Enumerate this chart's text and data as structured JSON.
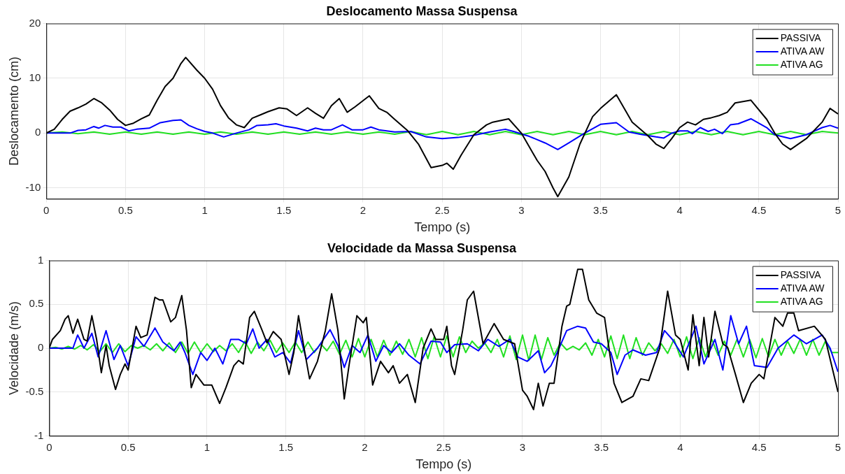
{
  "chart_data": [
    {
      "type": "line",
      "title": "Deslocamento Massa Suspensa",
      "xlabel": "Tempo (s)",
      "ylabel": "Deslocamento (cm)",
      "xlim": [
        0,
        5
      ],
      "xticks": [
        0,
        0.5,
        1,
        1.5,
        2,
        2.5,
        3,
        3.5,
        4,
        4.5,
        5
      ],
      "ylim": [
        -12,
        20
      ],
      "yticks": [
        -10,
        0,
        10,
        20
      ],
      "grid": true,
      "legend": "top right",
      "series": [
        {
          "name": "PASSIVA",
          "color": "#000000",
          "x": [
            0,
            0.05,
            0.1,
            0.15,
            0.2,
            0.25,
            0.3,
            0.35,
            0.4,
            0.45,
            0.5,
            0.55,
            0.6,
            0.65,
            0.7,
            0.75,
            0.8,
            0.85,
            0.88,
            0.95,
            1.0,
            1.05,
            1.1,
            1.15,
            1.2,
            1.25,
            1.3,
            1.35,
            1.4,
            1.47,
            1.52,
            1.58,
            1.65,
            1.7,
            1.75,
            1.8,
            1.85,
            1.9,
            1.95,
            2.04,
            2.1,
            2.15,
            2.2,
            2.28,
            2.35,
            2.43,
            2.5,
            2.53,
            2.57,
            2.62,
            2.7,
            2.78,
            2.82,
            2.92,
            3.0,
            3.1,
            3.15,
            3.2,
            3.23,
            3.3,
            3.37,
            3.45,
            3.5,
            3.6,
            3.7,
            3.8,
            3.85,
            3.9,
            3.95,
            4.0,
            4.05,
            4.1,
            4.15,
            4.2,
            4.25,
            4.3,
            4.35,
            4.45,
            4.55,
            4.6,
            4.65,
            4.7,
            4.8,
            4.9,
            4.95,
            5.0
          ],
          "values": [
            0,
            0.7,
            2.5,
            4,
            4.6,
            5.3,
            6.3,
            5.5,
            4.2,
            2.5,
            1.4,
            1.8,
            2.6,
            3.3,
            6,
            8.5,
            10,
            12.7,
            13.8,
            11.5,
            10,
            8,
            5,
            2.8,
            1.5,
            1,
            2.7,
            3.3,
            3.9,
            4.6,
            4.4,
            3.2,
            4.6,
            3.6,
            2.7,
            5,
            6.3,
            3.8,
            4.8,
            6.8,
            4.5,
            3.8,
            2.5,
            0.5,
            -2,
            -6.3,
            -5.9,
            -5.5,
            -6.6,
            -4,
            -0.3,
            1.5,
            2,
            2.6,
            0,
            -5,
            -7,
            -10,
            -11.6,
            -8,
            -2,
            3,
            4.5,
            7,
            2,
            -0.5,
            -2,
            -2.8,
            -1,
            1,
            2,
            1.5,
            2.5,
            2.8,
            3.2,
            3.8,
            5.5,
            6,
            2.5,
            0,
            -2,
            -3,
            -1,
            2,
            4.5,
            3.5
          ]
        },
        {
          "name": "ATIVA AW",
          "color": "#0000ff",
          "x": [
            0,
            0.15,
            0.2,
            0.25,
            0.3,
            0.33,
            0.37,
            0.42,
            0.47,
            0.52,
            0.57,
            0.65,
            0.72,
            0.8,
            0.85,
            0.9,
            0.95,
            1.0,
            1.05,
            1.12,
            1.2,
            1.28,
            1.33,
            1.4,
            1.45,
            1.5,
            1.58,
            1.65,
            1.7,
            1.75,
            1.8,
            1.87,
            1.93,
            2.0,
            2.05,
            2.1,
            2.2,
            2.3,
            2.4,
            2.5,
            2.6,
            2.7,
            2.8,
            2.9,
            2.95,
            3.05,
            3.15,
            3.23,
            3.3,
            3.4,
            3.5,
            3.6,
            3.68,
            3.75,
            3.85,
            3.9,
            3.95,
            4.0,
            4.05,
            4.08,
            4.13,
            4.18,
            4.22,
            4.27,
            4.32,
            4.37,
            4.45,
            4.55,
            4.6,
            4.7,
            4.8,
            4.9,
            4.95,
            5.0
          ],
          "values": [
            0,
            0,
            0.5,
            0.6,
            1.2,
            0.9,
            1.4,
            1.1,
            1.1,
            0.4,
            0.7,
            0.9,
            1.9,
            2.3,
            2.4,
            1.4,
            0.8,
            0.3,
            0,
            -0.7,
            0,
            0.6,
            1.4,
            1.5,
            1.7,
            1.3,
            0.9,
            0.4,
            0.9,
            0.6,
            0.6,
            1.5,
            0.6,
            0.6,
            1.1,
            0.6,
            0.2,
            0.3,
            -0.7,
            -1,
            -0.8,
            -0.4,
            0.2,
            0.7,
            0.3,
            -0.6,
            -1.8,
            -3,
            -1.8,
            0,
            1.6,
            1.9,
            0.2,
            -0.2,
            -0.7,
            -0.9,
            0,
            0.4,
            0.4,
            -0.1,
            1,
            0.3,
            0.7,
            -0.1,
            1.5,
            1.7,
            2.6,
            1,
            -0.3,
            -1,
            -0.3,
            1,
            1.4,
            0.9
          ]
        },
        {
          "name": "ATIVA AG",
          "color": "#22e022",
          "x": [
            0,
            0.1,
            0.2,
            0.3,
            0.4,
            0.5,
            0.6,
            0.7,
            0.8,
            0.9,
            1.0,
            1.1,
            1.2,
            1.3,
            1.4,
            1.5,
            1.6,
            1.7,
            1.8,
            1.9,
            2.0,
            2.1,
            2.2,
            2.3,
            2.4,
            2.5,
            2.6,
            2.7,
            2.8,
            2.9,
            3.0,
            3.1,
            3.2,
            3.3,
            3.4,
            3.5,
            3.6,
            3.7,
            3.8,
            3.9,
            4.0,
            4.1,
            4.2,
            4.3,
            4.4,
            4.5,
            4.6,
            4.7,
            4.8,
            4.9,
            5.0
          ],
          "values": [
            0,
            0.2,
            -0.1,
            0.2,
            -0.2,
            0.2,
            -0.2,
            0.2,
            -0.2,
            0.2,
            -0.2,
            0.2,
            -0.2,
            0.2,
            -0.2,
            0.2,
            -0.2,
            0.2,
            -0.2,
            0.2,
            -0.2,
            0.2,
            -0.2,
            0.3,
            -0.3,
            0.3,
            -0.3,
            0.3,
            -0.3,
            0.3,
            -0.3,
            0.3,
            -0.3,
            0.3,
            -0.3,
            0.3,
            -0.3,
            0.3,
            -0.3,
            0.3,
            -0.3,
            0.3,
            -0.3,
            0.3,
            -0.3,
            0.3,
            -0.3,
            0.3,
            -0.3,
            0.3,
            0
          ]
        }
      ]
    },
    {
      "type": "line",
      "title": "Velocidade da Massa Suspensa",
      "xlabel": "Tempo (s)",
      "ylabel": "Velocidade (m/s)",
      "xlim": [
        0,
        5
      ],
      "xticks": [
        0,
        0.5,
        1,
        1.5,
        2,
        2.5,
        3,
        3.5,
        4,
        4.5,
        5
      ],
      "ylim": [
        -1,
        1
      ],
      "yticks": [
        -1,
        -0.5,
        0,
        0.5,
        1
      ],
      "grid": true,
      "legend": "top right",
      "series": [
        {
          "name": "PASSIVA",
          "color": "#000000",
          "x": [
            0,
            0.02,
            0.07,
            0.1,
            0.12,
            0.15,
            0.18,
            0.22,
            0.24,
            0.27,
            0.3,
            0.33,
            0.36,
            0.38,
            0.42,
            0.45,
            0.48,
            0.5,
            0.55,
            0.58,
            0.62,
            0.67,
            0.7,
            0.72,
            0.77,
            0.8,
            0.84,
            0.87,
            0.9,
            0.93,
            0.98,
            1.03,
            1.08,
            1.12,
            1.17,
            1.2,
            1.23,
            1.27,
            1.3,
            1.35,
            1.38,
            1.42,
            1.47,
            1.52,
            1.55,
            1.58,
            1.62,
            1.65,
            1.7,
            1.75,
            1.79,
            1.83,
            1.87,
            1.9,
            1.95,
            1.99,
            2.01,
            2.05,
            2.1,
            2.15,
            2.18,
            2.22,
            2.27,
            2.32,
            2.37,
            2.42,
            2.45,
            2.5,
            2.52,
            2.55,
            2.57,
            2.62,
            2.65,
            2.69,
            2.75,
            2.82,
            2.88,
            2.95,
            3.0,
            3.03,
            3.07,
            3.1,
            3.13,
            3.17,
            3.2,
            3.25,
            3.28,
            3.3,
            3.35,
            3.38,
            3.42,
            3.47,
            3.52,
            3.58,
            3.63,
            3.7,
            3.75,
            3.8,
            3.87,
            3.92,
            3.97,
            4.0,
            4.05,
            4.08,
            4.12,
            4.15,
            4.18,
            4.22,
            4.27,
            4.3,
            4.35,
            4.4,
            4.45,
            4.5,
            4.53,
            4.6,
            4.65,
            4.68,
            4.72,
            4.75,
            4.85,
            4.92,
            5.0
          ],
          "values": [
            0,
            0.1,
            0.2,
            0.33,
            0.37,
            0.17,
            0.33,
            0.1,
            0.08,
            0.37,
            0.1,
            -0.28,
            0.03,
            -0.2,
            -0.47,
            -0.3,
            -0.18,
            -0.25,
            0.25,
            0.12,
            0.15,
            0.58,
            0.55,
            0.55,
            0.3,
            0.35,
            0.6,
            0.2,
            -0.45,
            -0.3,
            -0.42,
            -0.42,
            -0.63,
            -0.45,
            -0.2,
            -0.14,
            -0.18,
            0.35,
            0.42,
            0.2,
            0.06,
            0.19,
            0.1,
            -0.3,
            -0.05,
            0.37,
            -0.05,
            -0.35,
            -0.15,
            0.2,
            0.62,
            0.2,
            -0.58,
            -0.2,
            0.37,
            0.29,
            0.35,
            -0.42,
            -0.15,
            -0.28,
            -0.2,
            -0.4,
            -0.3,
            -0.62,
            0,
            0.22,
            0.1,
            0.1,
            0.25,
            -0.2,
            -0.3,
            0.2,
            0.55,
            0.65,
            0.05,
            0.28,
            0.1,
            0.05,
            -0.48,
            -0.55,
            -0.7,
            -0.4,
            -0.66,
            -0.4,
            -0.4,
            0.25,
            0.48,
            0.5,
            0.9,
            0.9,
            0.55,
            0.4,
            0.35,
            -0.4,
            -0.62,
            -0.55,
            -0.35,
            -0.37,
            0,
            0.65,
            0.15,
            0.1,
            -0.25,
            0.38,
            -0.2,
            0.35,
            -0.1,
            0.42,
            0.05,
            0.01,
            -0.3,
            -0.62,
            -0.4,
            -0.3,
            -0.35,
            0.35,
            0.25,
            0.4,
            0.4,
            0.2,
            0.25,
            0.1,
            -0.5
          ]
        },
        {
          "name": "ATIVA AW",
          "color": "#0000ff",
          "x": [
            0,
            0.15,
            0.18,
            0.22,
            0.27,
            0.31,
            0.36,
            0.41,
            0.45,
            0.5,
            0.55,
            0.6,
            0.67,
            0.72,
            0.79,
            0.83,
            0.86,
            0.91,
            0.96,
            1.0,
            1.05,
            1.1,
            1.15,
            1.2,
            1.25,
            1.29,
            1.33,
            1.38,
            1.43,
            1.48,
            1.53,
            1.58,
            1.63,
            1.7,
            1.78,
            1.83,
            1.87,
            1.92,
            1.97,
            2.02,
            2.07,
            2.12,
            2.17,
            2.22,
            2.28,
            2.35,
            2.42,
            2.48,
            2.52,
            2.57,
            2.65,
            2.72,
            2.78,
            2.85,
            2.92,
            2.97,
            3.03,
            3.1,
            3.14,
            3.18,
            3.22,
            3.28,
            3.35,
            3.4,
            3.45,
            3.5,
            3.56,
            3.6,
            3.65,
            3.7,
            3.78,
            3.85,
            3.9,
            3.95,
            4.02,
            4.1,
            4.15,
            4.22,
            4.27,
            4.32,
            4.37,
            4.42,
            4.47,
            4.55,
            4.62,
            4.72,
            4.8,
            4.85,
            4.9,
            4.95,
            5.0
          ],
          "values": [
            0,
            0,
            0.15,
            0,
            0.17,
            -0.1,
            0.2,
            -0.13,
            0.03,
            -0.2,
            0.13,
            0.02,
            0.23,
            0.07,
            -0.03,
            0.07,
            -0.05,
            -0.3,
            -0.05,
            -0.14,
            0,
            -0.18,
            0.1,
            0.1,
            0.05,
            0.22,
            0,
            0.1,
            -0.1,
            -0.05,
            -0.17,
            0.2,
            -0.13,
            0,
            0.21,
            0.03,
            -0.22,
            0.03,
            -0.05,
            0.15,
            -0.15,
            0.03,
            -0.05,
            0.05,
            -0.08,
            -0.18,
            0.08,
            0.07,
            -0.05,
            0.04,
            0.05,
            -0.03,
            0.1,
            0.02,
            0.1,
            -0.1,
            -0.15,
            -0.03,
            -0.28,
            -0.2,
            -0.05,
            0.2,
            0.25,
            0.23,
            0.07,
            0.05,
            -0.05,
            -0.3,
            -0.08,
            -0.02,
            -0.08,
            -0.05,
            0.2,
            0.1,
            -0.1,
            0.25,
            -0.18,
            0.1,
            -0.25,
            0.37,
            0.05,
            0.25,
            -0.2,
            -0.22,
            0,
            0.15,
            0.05,
            0.1,
            0.15,
            0,
            -0.27
          ]
        },
        {
          "name": "ATIVA AG",
          "color": "#22e022",
          "x": [
            0,
            0.04,
            0.08,
            0.12,
            0.16,
            0.2,
            0.24,
            0.28,
            0.32,
            0.36,
            0.4,
            0.44,
            0.48,
            0.52,
            0.56,
            0.6,
            0.64,
            0.68,
            0.72,
            0.76,
            0.8,
            0.84,
            0.88,
            0.92,
            0.96,
            1.0,
            1.04,
            1.08,
            1.12,
            1.16,
            1.2,
            1.24,
            1.28,
            1.32,
            1.36,
            1.4,
            1.44,
            1.48,
            1.52,
            1.56,
            1.6,
            1.64,
            1.68,
            1.72,
            1.76,
            1.8,
            1.84,
            1.88,
            1.92,
            1.96,
            2.0,
            2.04,
            2.08,
            2.12,
            2.16,
            2.2,
            2.24,
            2.28,
            2.32,
            2.36,
            2.4,
            2.44,
            2.48,
            2.52,
            2.56,
            2.6,
            2.64,
            2.68,
            2.72,
            2.76,
            2.8,
            2.84,
            2.88,
            2.92,
            2.96,
            3.0,
            3.04,
            3.08,
            3.12,
            3.16,
            3.2,
            3.24,
            3.28,
            3.32,
            3.36,
            3.4,
            3.44,
            3.48,
            3.52,
            3.56,
            3.6,
            3.64,
            3.68,
            3.72,
            3.76,
            3.8,
            3.84,
            3.88,
            3.92,
            3.96,
            4.0,
            4.04,
            4.08,
            4.12,
            4.16,
            4.2,
            4.24,
            4.28,
            4.32,
            4.36,
            4.4,
            4.44,
            4.48,
            4.52,
            4.56,
            4.6,
            4.64,
            4.68,
            4.72,
            4.76,
            4.8,
            4.84,
            4.88,
            4.92,
            4.96,
            5.0
          ],
          "values": [
            0,
            0.01,
            -0.01,
            0.02,
            -0.01,
            0.03,
            -0.02,
            0.04,
            -0.04,
            0.05,
            -0.05,
            0.05,
            -0.04,
            0.03,
            0,
            0.03,
            -0.02,
            0.05,
            -0.03,
            0.06,
            -0.05,
            0.07,
            -0.06,
            0.07,
            -0.05,
            0.05,
            -0.04,
            0.03,
            -0.03,
            0.05,
            -0.05,
            0.08,
            -0.06,
            0.07,
            -0.03,
            0.09,
            -0.05,
            0.06,
            -0.05,
            0.07,
            -0.05,
            0.07,
            -0.05,
            0.05,
            -0.03,
            0.08,
            -0.07,
            0.09,
            -0.1,
            0.11,
            -0.1,
            0.1,
            -0.1,
            0.09,
            -0.08,
            0.08,
            -0.07,
            0.1,
            -0.1,
            0.12,
            -0.12,
            0.13,
            -0.1,
            0.14,
            -0.1,
            0.13,
            -0.05,
            0.08,
            0,
            0.06,
            -0.05,
            0.1,
            -0.1,
            0.14,
            -0.13,
            0.15,
            -0.14,
            0.15,
            -0.13,
            0.12,
            -0.08,
            0.06,
            -0.02,
            0.02,
            -0.02,
            0.06,
            -0.08,
            0.1,
            -0.1,
            0.14,
            -0.12,
            0.15,
            -0.12,
            0.12,
            -0.08,
            0.06,
            -0.03,
            0.05,
            -0.06,
            0.1,
            -0.1,
            0.13,
            -0.12,
            0.12,
            -0.1,
            0.1,
            -0.08,
            0.08,
            -0.08,
            0.1,
            -0.1,
            0.1,
            -0.11,
            0.11,
            -0.1,
            0.1,
            -0.08,
            0.08,
            -0.06,
            0.1,
            -0.08,
            0.1,
            -0.08,
            0.08,
            -0.05,
            -0.05
          ]
        }
      ]
    }
  ]
}
